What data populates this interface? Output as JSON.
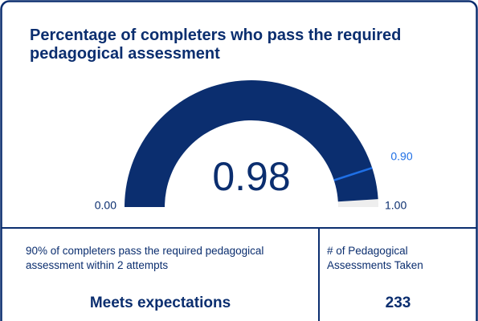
{
  "chart_data": {
    "type": "gauge",
    "title": "Percentage of completers who pass the required pedagogical assessment",
    "value": 0.98,
    "ylim": [
      0,
      1
    ],
    "yticks": [
      {
        "value": 0,
        "label": "0.00"
      },
      {
        "value": 1,
        "label": "1.00"
      }
    ],
    "target": {
      "value": 0.9,
      "label": "0.90"
    },
    "color": "#0b2e6f",
    "track_color": "#eeeeee",
    "target_color": "#1f6fe5"
  },
  "cards": [
    {
      "text": "90% of completers pass the required pedagogical assessment within 2 attempts",
      "status": "Meets expectations"
    },
    {
      "text": "# of Pedagogical Assessments Taken",
      "value": 233
    }
  ]
}
